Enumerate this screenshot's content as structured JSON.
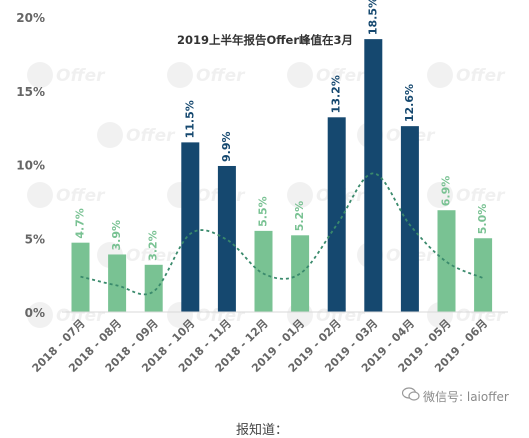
{
  "chart_data": {
    "type": "bar",
    "title": "2019上半年报告Offer峰值在3月",
    "categories": [
      "2018 - 07月",
      "2018 - 08月",
      "2018 - 09月",
      "2018 - 10月",
      "2018 - 11月",
      "2018 - 12月",
      "2019 - 01月",
      "2019 - 02月",
      "2019 - 03月",
      "2019 - 04月",
      "2019 - 05月",
      "2019 - 06月"
    ],
    "values": [
      4.7,
      3.9,
      3.2,
      11.5,
      9.9,
      5.5,
      5.2,
      13.2,
      18.5,
      12.6,
      6.9,
      5.0
    ],
    "value_labels": [
      "4.7%",
      "3.9%",
      "3.2%",
      "11.5%",
      "9.9%",
      "5.5%",
      "5.2%",
      "13.2%",
      "18.5%",
      "12.6%",
      "6.9%",
      "5.0%"
    ],
    "highlight": [
      false,
      false,
      false,
      true,
      true,
      false,
      false,
      true,
      true,
      true,
      false,
      false
    ],
    "trend_line": [
      2.4,
      1.8,
      1.4,
      5.3,
      4.9,
      2.6,
      2.6,
      5.9,
      9.4,
      5.9,
      3.4,
      2.3
    ],
    "ylim": [
      0,
      20
    ],
    "yticks": [
      "0%",
      "5%",
      "10%",
      "15%",
      "20%"
    ],
    "ytick_values": [
      0,
      5,
      10,
      15,
      20
    ],
    "grid": false,
    "legend": "none",
    "colors": {
      "highlight": "#15486f",
      "normal": "#79c293",
      "normal_label": "#79c293",
      "highlight_label": "#15486f",
      "trend": "#3a8a6c",
      "axis_text": "#666666"
    }
  },
  "watermark_text": "Offer",
  "footer": {
    "text": "微信号: laioffer",
    "cut_text": "报知道："
  }
}
